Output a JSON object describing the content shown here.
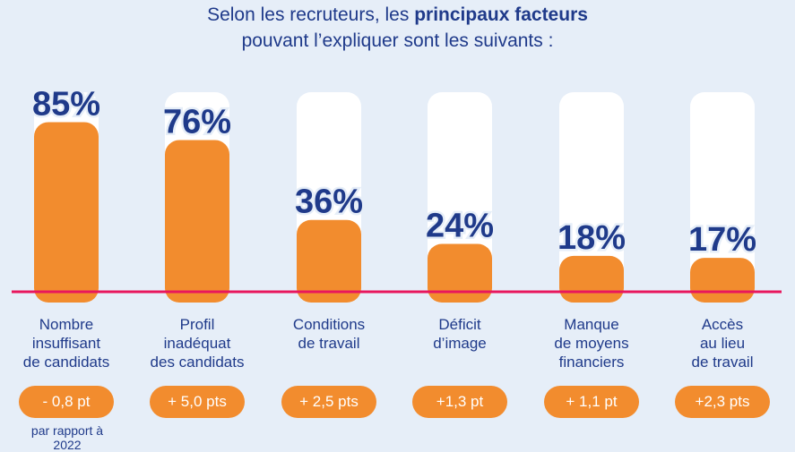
{
  "header": {
    "line1_prefix": "Selon les recruteurs, les ",
    "line1_bold": "principaux facteurs",
    "line2": "pouvant l’expliquer sont les suivants :"
  },
  "chart_data": {
    "type": "bar",
    "categories": [
      "Nombre\ninsuffisant\nde candidats",
      "Profil\ninadéquat\ndes candidats",
      "Conditions\nde travail",
      "Déficit\nd’image",
      "Manque\nde moyens\nfinanciers",
      "Accès\nau lieu\nde travail"
    ],
    "values": [
      85,
      76,
      36,
      24,
      18,
      17
    ],
    "value_labels": [
      "85%",
      "76%",
      "36%",
      "24%",
      "18%",
      "17%"
    ],
    "changes": [
      "- 0,8 pt",
      "+ 5,0 pts",
      "+ 2,5 pts",
      "+1,3 pt",
      "+ 1,1 pt",
      "+2,3 pts"
    ],
    "change_note": "par rapport à 2022",
    "ylim": [
      0,
      100
    ],
    "colors": {
      "bar": "#f28c2e",
      "track": "#ffffff",
      "baseline": "#e8175d",
      "text": "#1f3a8a",
      "background": "#e6eef8"
    }
  }
}
